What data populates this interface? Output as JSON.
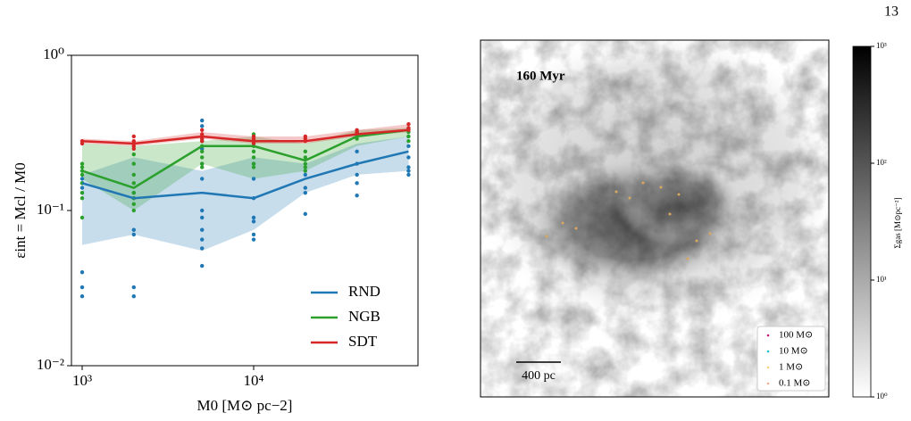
{
  "page_number": "13",
  "chart_data": {
    "type": "line",
    "xlabel": "M0 [M⊙ pc−2]",
    "ylabel": "εint = Mcl / M0",
    "x": [
      1000,
      2000,
      5000,
      10000,
      20000,
      40000,
      80000
    ],
    "xscale": "log",
    "yscale": "log",
    "xlim": [
      866,
      90800
    ],
    "ylim": [
      0.01,
      1
    ],
    "xticks": [
      {
        "value": 1000,
        "label": "10³"
      },
      {
        "value": 10000,
        "label": "10⁴"
      }
    ],
    "yticks": [
      {
        "value": 0.01,
        "label": "10⁻²"
      },
      {
        "value": 0.1,
        "label": "10⁻¹"
      },
      {
        "value": 1,
        "label": "10⁰"
      }
    ],
    "legend": "lower right",
    "series": [
      {
        "name": "RND",
        "color": "#1f77b4",
        "values": [
          0.15,
          0.12,
          0.13,
          0.12,
          0.16,
          0.2,
          0.24
        ],
        "band_low": [
          0.06,
          0.07,
          0.055,
          0.075,
          0.13,
          0.17,
          0.18
        ],
        "band_high": [
          0.17,
          0.22,
          0.18,
          0.22,
          0.2,
          0.27,
          0.3
        ],
        "points_x": [
          1000,
          1000,
          1000,
          1000,
          1000,
          1000,
          1000,
          2000,
          2000,
          2000,
          2000,
          2000,
          2000,
          5000,
          5000,
          5000,
          5000,
          5000,
          5000,
          5000,
          5000,
          5000,
          5000,
          5000,
          10000,
          10000,
          10000,
          10000,
          10000,
          10000,
          10000,
          20000,
          20000,
          20000,
          20000,
          40000,
          40000,
          40000,
          40000,
          40000,
          80000,
          80000,
          80000,
          80000,
          80000,
          80000
        ],
        "points_y": [
          0.15,
          0.14,
          0.16,
          0.13,
          0.04,
          0.032,
          0.028,
          0.13,
          0.12,
          0.075,
          0.07,
          0.032,
          0.028,
          0.38,
          0.35,
          0.25,
          0.2,
          0.16,
          0.1,
          0.09,
          0.075,
          0.065,
          0.057,
          0.044,
          0.2,
          0.16,
          0.12,
          0.09,
          0.085,
          0.07,
          0.065,
          0.17,
          0.14,
          0.13,
          0.095,
          0.24,
          0.2,
          0.17,
          0.15,
          0.125,
          0.3,
          0.26,
          0.22,
          0.19,
          0.18,
          0.17
        ]
      },
      {
        "name": "NGB",
        "color": "#2ca02c",
        "values": [
          0.18,
          0.14,
          0.26,
          0.26,
          0.21,
          0.3,
          0.33
        ],
        "band_low": [
          0.16,
          0.1,
          0.2,
          0.16,
          0.18,
          0.26,
          0.3
        ],
        "band_high": [
          0.27,
          0.26,
          0.28,
          0.3,
          0.27,
          0.33,
          0.34
        ],
        "points_x": [
          1000,
          1000,
          1000,
          1000,
          1000,
          1000,
          1000,
          1000,
          2000,
          2000,
          2000,
          2000,
          2000,
          2000,
          2000,
          2000,
          5000,
          5000,
          5000,
          5000,
          5000,
          5000,
          5000,
          10000,
          10000,
          10000,
          10000,
          10000,
          10000,
          10000,
          20000,
          20000,
          20000,
          20000,
          20000,
          40000,
          40000,
          40000,
          80000,
          80000,
          80000,
          80000
        ],
        "points_y": [
          0.2,
          0.19,
          0.18,
          0.17,
          0.15,
          0.13,
          0.12,
          0.09,
          0.23,
          0.2,
          0.17,
          0.15,
          0.13,
          0.12,
          0.11,
          0.1,
          0.3,
          0.28,
          0.26,
          0.24,
          0.22,
          0.2,
          0.19,
          0.31,
          0.28,
          0.26,
          0.24,
          0.22,
          0.2,
          0.19,
          0.24,
          0.22,
          0.2,
          0.19,
          0.18,
          0.32,
          0.3,
          0.29,
          0.34,
          0.32,
          0.3,
          0.28
        ]
      },
      {
        "name": "SDT",
        "color": "#d62728",
        "values": [
          0.28,
          0.27,
          0.3,
          0.28,
          0.28,
          0.31,
          0.33
        ],
        "band_low": [
          0.27,
          0.26,
          0.29,
          0.27,
          0.27,
          0.3,
          0.32
        ],
        "band_high": [
          0.29,
          0.28,
          0.32,
          0.3,
          0.3,
          0.33,
          0.36
        ],
        "points_x": [
          1000,
          1000,
          2000,
          2000,
          2000,
          2000,
          2000,
          5000,
          5000,
          5000,
          5000,
          5000,
          10000,
          10000,
          10000,
          10000,
          20000,
          20000,
          20000,
          40000,
          40000,
          40000,
          80000,
          80000,
          80000
        ],
        "points_y": [
          0.28,
          0.27,
          0.3,
          0.28,
          0.27,
          0.26,
          0.25,
          0.33,
          0.31,
          0.3,
          0.29,
          0.28,
          0.3,
          0.29,
          0.28,
          0.27,
          0.3,
          0.29,
          0.28,
          0.33,
          0.32,
          0.31,
          0.36,
          0.34,
          0.33
        ]
      }
    ]
  },
  "image_panel": {
    "time_label": "160 Myr",
    "scale_bar": "400 pc",
    "legend": [
      "100 M⊙",
      "10 M⊙",
      "1 M⊙",
      "0.1 M⊙"
    ],
    "legend_colors": [
      "#c2187a",
      "#17becf",
      "#ffd27a",
      "#f0b090"
    ],
    "colorbar": {
      "label": "Σgas [M⊙pc⁻²]",
      "scale": "log",
      "lim": [
        1,
        1000
      ],
      "ticks": [
        {
          "value": 1,
          "label": "10⁰"
        },
        {
          "value": 10,
          "label": "10¹"
        },
        {
          "value": 100,
          "label": "10²"
        },
        {
          "value": 1000,
          "label": "10³"
        }
      ]
    }
  }
}
